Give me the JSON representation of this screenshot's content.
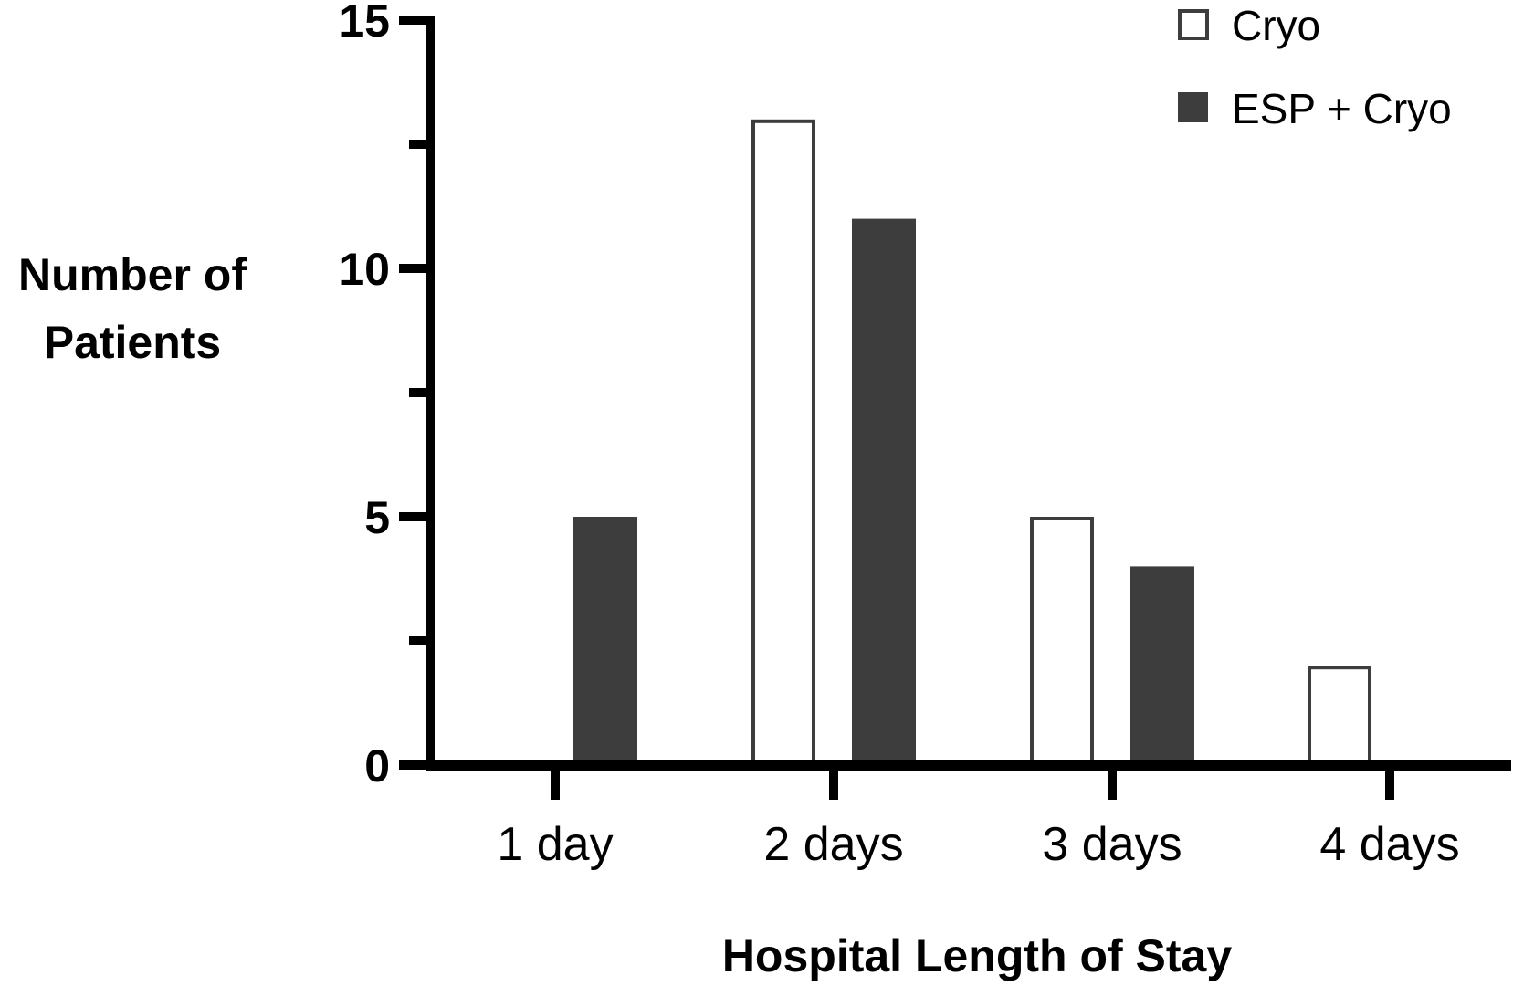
{
  "chart_data": {
    "type": "bar",
    "title": "",
    "xlabel": "Hospital Length of Stay",
    "ylabel": "Number of Patients",
    "ylabel_lines": [
      "Number of",
      "Patients"
    ],
    "categories": [
      "1 day",
      "2 days",
      "3 days",
      "4 days"
    ],
    "series": [
      {
        "name": "Cryo",
        "values": [
          0,
          13,
          5,
          2
        ],
        "fill": "#ffffff",
        "stroke": "#3d3d3d"
      },
      {
        "name": "ESP + Cryo",
        "values": [
          5,
          11,
          4,
          0
        ],
        "fill": "#3d3d3d",
        "stroke": "#3d3d3d"
      }
    ],
    "ylim": [
      0,
      15
    ],
    "yticks": [
      "0",
      "5",
      "10",
      "15"
    ],
    "minor_yticks": [
      2.5,
      7.5,
      12.5
    ],
    "grid": false,
    "legend_position": "top-right"
  }
}
